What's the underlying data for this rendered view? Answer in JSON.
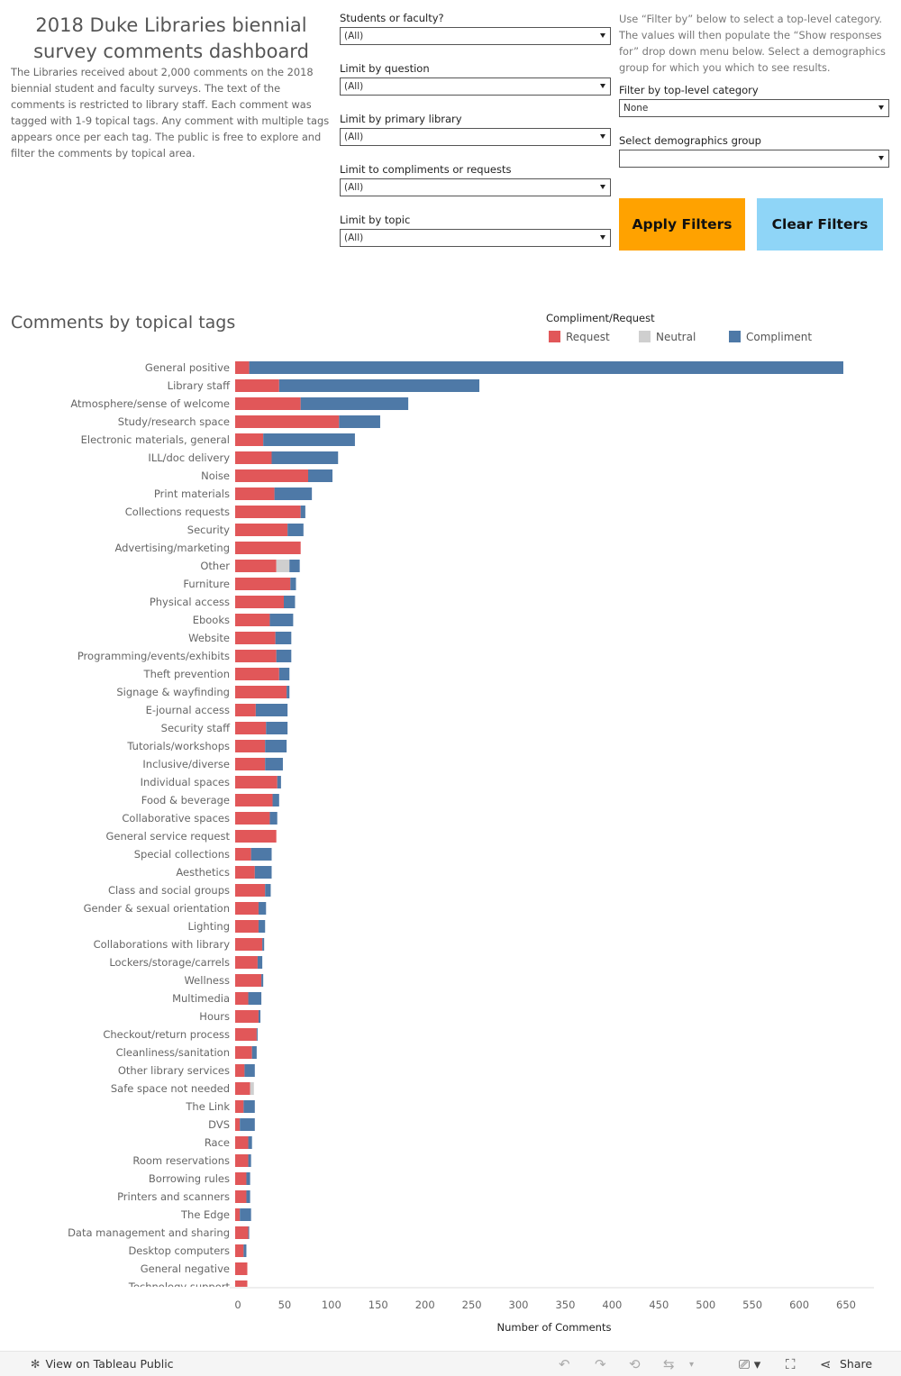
{
  "header": {
    "title": "2018 Duke Libraries biennial survey comments dashboard",
    "intro": "The Libraries received about 2,000 comments on the 2018 biennial student and faculty surveys. The text of the comments is restricted to library staff. Each comment was tagged with 1-9 topical tags. Any comment with multiple tags appears once per each tag. The public is free to explore and filter the comments by topical area."
  },
  "filters": {
    "students_faculty": {
      "label": "Students or faculty?",
      "value": "(All)"
    },
    "question": {
      "label": "Limit by question",
      "value": "(All)"
    },
    "library": {
      "label": "Limit by primary library",
      "value": "(All)"
    },
    "compliments": {
      "label": "Limit to compliments or requests",
      "value": "(All)"
    },
    "topic": {
      "label": "Limit by topic",
      "value": "(All)"
    },
    "help_text": "Use “Filter by” below to select a top-level category. The values will then populate the “Show responses for” drop down menu below. Select a demographics group for which you which to see results.",
    "category": {
      "label": "Filter by top-level category",
      "value": "None"
    },
    "demographics": {
      "label": "Select demographics group",
      "value": ""
    }
  },
  "buttons": {
    "apply": "Apply Filters",
    "clear": "Clear Filters"
  },
  "chart_title": "Comments by topical tags",
  "legend": {
    "title": "Compliment/Request",
    "items": [
      {
        "label": "Request",
        "color": "#e15759"
      },
      {
        "label": "Neutral",
        "color": "#cfcfcf"
      },
      {
        "label": "Compliment",
        "color": "#4e79a7"
      }
    ]
  },
  "footer": {
    "view_label": "View on Tableau Public",
    "share_label": "Share",
    "icons": [
      "undo-icon",
      "redo-icon",
      "revert-icon",
      "refresh-icon",
      "download-icon",
      "fullscreen-icon",
      "share-icon"
    ]
  },
  "chart_data": {
    "type": "bar",
    "orientation": "horizontal",
    "stacked": true,
    "xlabel": "Number of Comments",
    "xlim": [
      0,
      650
    ],
    "xticks": [
      0,
      50,
      100,
      150,
      200,
      250,
      300,
      350,
      400,
      450,
      500,
      550,
      600,
      650
    ],
    "grid": false,
    "legend_position": "top-right",
    "categories": [
      "General positive",
      "Library staff",
      "Atmosphere/sense of welcome",
      "Study/research space",
      "Electronic materials, general",
      "ILL/doc delivery",
      "Noise",
      "Print materials",
      "Collections requests",
      "Security",
      "Advertising/marketing",
      "Other",
      "Furniture",
      "Physical access",
      "Ebooks",
      "Website",
      "Programming/events/exhibits",
      "Theft prevention",
      "Signage & wayfinding",
      "E-journal access",
      "Security staff",
      "Tutorials/workshops",
      "Inclusive/diverse",
      "Individual spaces",
      "Food & beverage",
      "Collaborative spaces",
      "General service request",
      "Special collections",
      "Aesthetics",
      "Class and social groups",
      "Gender & sexual orientation",
      "Lighting",
      "Collaborations with library",
      "Lockers/storage/carrels",
      "Wellness",
      "Multimedia",
      "Hours",
      "Checkout/return process",
      "Cleanliness/sanitation",
      "Other library services",
      "Safe space not needed",
      "The Link",
      "DVS",
      "Race",
      "Room reservations",
      "Borrowing rules",
      "Printers and scanners",
      "The Edge",
      "Data management and sharing",
      "Desktop computers",
      "General negative",
      "Technology support"
    ],
    "series": [
      {
        "name": "Request",
        "values": [
          15,
          47,
          70,
          111,
          30,
          39,
          78,
          42,
          70,
          56,
          70,
          44,
          59,
          52,
          37,
          43,
          44,
          47,
          55,
          22,
          33,
          32,
          32,
          45,
          40,
          37,
          44,
          17,
          21,
          32,
          25,
          25,
          29,
          24,
          28,
          14,
          25,
          23,
          18,
          10,
          16,
          9,
          5,
          14,
          14,
          12,
          12,
          5,
          14,
          9,
          13,
          13
        ]
      },
      {
        "name": "Neutral",
        "values": [
          0,
          0,
          0,
          0,
          0,
          0,
          0,
          0,
          0,
          0,
          0,
          14,
          0,
          0,
          0,
          0,
          0,
          0,
          0,
          0,
          0,
          0,
          0,
          0,
          0,
          0,
          0,
          0,
          0,
          0,
          0,
          0,
          0,
          0,
          0,
          0,
          0,
          0,
          0,
          0,
          4,
          0,
          0,
          0,
          0,
          0,
          0,
          0,
          0,
          0,
          0,
          0
        ]
      },
      {
        "name": "Compliment",
        "values": [
          635,
          214,
          115,
          44,
          98,
          71,
          26,
          40,
          5,
          17,
          0,
          11,
          6,
          12,
          25,
          17,
          16,
          11,
          3,
          34,
          23,
          23,
          19,
          4,
          7,
          8,
          0,
          22,
          18,
          6,
          8,
          7,
          2,
          5,
          2,
          14,
          2,
          1,
          5,
          11,
          0,
          12,
          16,
          4,
          3,
          4,
          4,
          12,
          1,
          3,
          0,
          0
        ]
      }
    ]
  }
}
